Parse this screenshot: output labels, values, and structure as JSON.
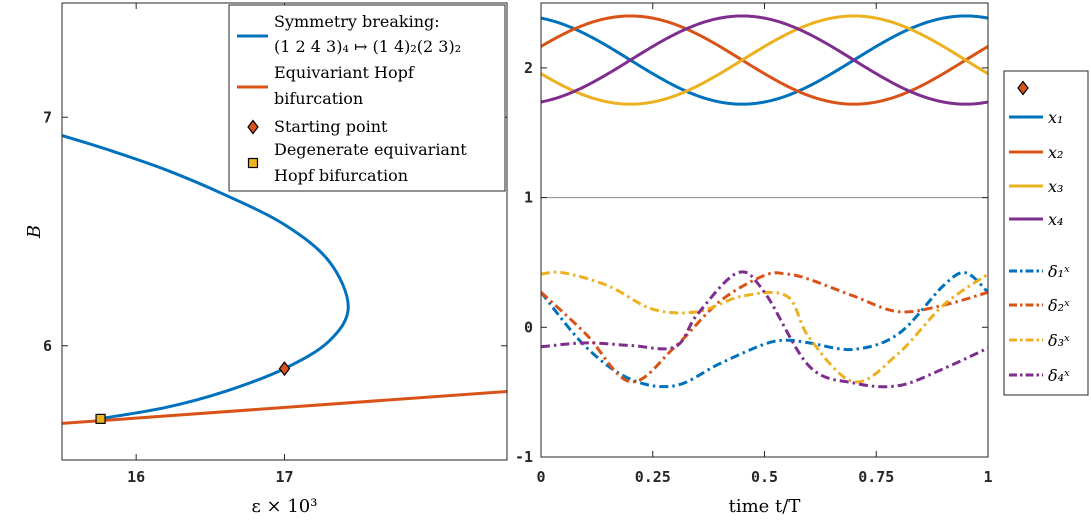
{
  "chart_data": [
    {
      "type": "line",
      "xlabel": "ε × 10³",
      "ylabel": "B",
      "xlim": [
        15.5,
        18.5
      ],
      "ylim": [
        5.5,
        7.5
      ],
      "xticks": [
        "16",
        "17"
      ],
      "yticks": [
        "6",
        "7"
      ],
      "legend_placement": "top-right",
      "series": [
        {
          "name": "Symmetry breaking: (1 2 4 3)₄ ↦ (1 4)₂(2 3)₂",
          "color": "#0072BD",
          "x": [
            15.75,
            16.2,
            16.6,
            17.0,
            17.3,
            17.43,
            17.3,
            17.0,
            16.6,
            16.2,
            15.8,
            15.5
          ],
          "y": [
            5.68,
            5.73,
            5.8,
            5.9,
            6.02,
            6.17,
            6.37,
            6.53,
            6.66,
            6.77,
            6.86,
            6.92
          ]
        },
        {
          "name": "Equivariant Hopf bifurcation",
          "color": "#D95319",
          "x": [
            15.5,
            18.5
          ],
          "y": [
            5.66,
            5.8
          ]
        }
      ],
      "markers": [
        {
          "name": "Starting point",
          "shape": "diamond",
          "color": "#D95319",
          "x": 17.0,
          "y": 5.9
        },
        {
          "name": "Degenerate equivariant Hopf bifurcation",
          "shape": "square",
          "color": "#EDB120",
          "x": 15.76,
          "y": 5.68
        }
      ]
    },
    {
      "type": "line",
      "xlabel": "time t/T",
      "ylabel": "",
      "xlim": [
        0,
        1
      ],
      "ylim": [
        -1,
        2.5
      ],
      "xticks": [
        "0",
        "0.25",
        "0.5",
        "0.75",
        "1"
      ],
      "yticks": [
        "-1",
        "0",
        "1",
        "2"
      ],
      "reference_line_y": 1,
      "legend_placement": "outside-right",
      "series": [
        {
          "name": "x₁",
          "style": "solid",
          "color": "#0072BD",
          "mean": 2.06,
          "amp": 0.34,
          "phase": 0.95
        },
        {
          "name": "x₂",
          "style": "solid",
          "color": "#D95319",
          "mean": 2.06,
          "amp": 0.34,
          "phase": 0.2
        },
        {
          "name": "x₃",
          "style": "solid",
          "color": "#EDB120",
          "mean": 2.06,
          "amp": 0.34,
          "phase": 0.7
        },
        {
          "name": "x₄",
          "style": "solid",
          "color": "#7E2F8E",
          "mean": 2.06,
          "amp": 0.34,
          "phase": 0.45
        },
        {
          "name": "δ₁ˣ",
          "style": "dashdot",
          "color": "#0072BD",
          "x": [
            0,
            0.1,
            0.2,
            0.3,
            0.4,
            0.5,
            0.55,
            0.6,
            0.7,
            0.8,
            0.9,
            0.95,
            1.0
          ],
          "y": [
            0.27,
            -0.15,
            -0.4,
            -0.45,
            -0.28,
            -0.13,
            -0.1,
            -0.12,
            -0.17,
            -0.05,
            0.32,
            0.42,
            0.27
          ]
        },
        {
          "name": "δ₂ˣ",
          "style": "dashdot",
          "color": "#D95319",
          "x": [
            0,
            0.1,
            0.2,
            0.3,
            0.4,
            0.5,
            0.55,
            0.6,
            0.7,
            0.8,
            0.9,
            1.0
          ],
          "y": [
            0.27,
            -0.05,
            -0.42,
            -0.15,
            0.2,
            0.4,
            0.41,
            0.37,
            0.24,
            0.12,
            0.17,
            0.27
          ]
        },
        {
          "name": "δ₃ˣ",
          "style": "dashdot",
          "color": "#EDB120",
          "x": [
            0,
            0.05,
            0.15,
            0.25,
            0.35,
            0.45,
            0.55,
            0.6,
            0.7,
            0.8,
            0.9,
            1.0
          ],
          "y": [
            0.41,
            0.42,
            0.32,
            0.14,
            0.12,
            0.24,
            0.24,
            -0.08,
            -0.42,
            -0.2,
            0.17,
            0.41
          ]
        },
        {
          "name": "δ₄ˣ",
          "style": "dashdot",
          "color": "#7E2F8E",
          "x": [
            0,
            0.1,
            0.2,
            0.3,
            0.35,
            0.44,
            0.5,
            0.6,
            0.7,
            0.8,
            0.9,
            1.0
          ],
          "y": [
            -0.15,
            -0.12,
            -0.14,
            -0.15,
            0.1,
            0.42,
            0.27,
            -0.3,
            -0.43,
            -0.45,
            -0.32,
            -0.16
          ]
        }
      ]
    }
  ],
  "legend1": [
    {
      "key": "sym",
      "text": "Symmetry breaking:",
      "text2": "(1 2 4 3)₄ ↦ (1 4)₂(2 3)₂"
    },
    {
      "key": "hopf",
      "text": "Equivariant Hopf",
      "text2": "bifurcation"
    },
    {
      "key": "start",
      "text": "Starting point"
    },
    {
      "key": "degen",
      "text": "Degenerate equivariant",
      "text2": "Hopf bifurcation"
    }
  ],
  "legend2": [
    "x₁",
    "x₂",
    "x₃",
    "x₄",
    "δ₁ˣ",
    "δ₂ˣ",
    "δ₃ˣ",
    "δ₄ˣ"
  ]
}
